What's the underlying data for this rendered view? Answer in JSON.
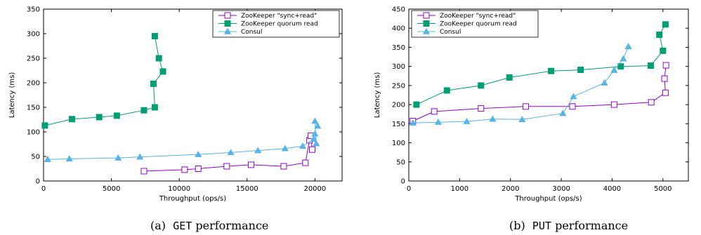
{
  "chart_data": [
    {
      "type": "line",
      "caption_prefix": "(a)",
      "caption_code": "GET",
      "caption_suffix": "performance",
      "xlabel": "Throughput (ops/s)",
      "ylabel": "Latency (ms)",
      "xlim": [
        0,
        22000
      ],
      "ylim": [
        0,
        350
      ],
      "xticks": [
        0,
        5000,
        10000,
        15000,
        20000
      ],
      "yticks": [
        0,
        50,
        100,
        150,
        200,
        250,
        300,
        350
      ],
      "grid": false,
      "legend_position": "top-right",
      "series": [
        {
          "name": "ZooKeeper \"sync+read\"",
          "color": "#9400d3",
          "marker": "open-square",
          "points": [
            [
              7400,
              20
            ],
            [
              10400,
              23
            ],
            [
              11400,
              25
            ],
            [
              13500,
              30
            ],
            [
              15300,
              33
            ],
            [
              17700,
              30
            ],
            [
              19300,
              37
            ],
            [
              19600,
              83
            ],
            [
              19700,
              92
            ],
            [
              19800,
              64
            ]
          ]
        },
        {
          "name": "ZooKeeper quorum read",
          "color": "#009e73",
          "marker": "filled-square",
          "points": [
            [
              100,
              113
            ],
            [
              2100,
              126
            ],
            [
              4100,
              130
            ],
            [
              5400,
              133
            ],
            [
              7400,
              144
            ],
            [
              8200,
              150
            ],
            [
              8100,
              198
            ],
            [
              8800,
              223
            ],
            [
              8500,
              250
            ],
            [
              8200,
              295
            ]
          ]
        },
        {
          "name": "Consul",
          "color": "#56b4e9",
          "marker": "filled-triangle",
          "points": [
            [
              300,
              44
            ],
            [
              1900,
              45
            ],
            [
              5500,
              47
            ],
            [
              7100,
              49
            ],
            [
              11400,
              54
            ],
            [
              13800,
              58
            ],
            [
              15800,
              62
            ],
            [
              17800,
              66
            ],
            [
              19100,
              71
            ],
            [
              19900,
              85
            ],
            [
              20000,
              96
            ],
            [
              20100,
              76
            ],
            [
              20000,
              122
            ],
            [
              20200,
              112
            ]
          ]
        }
      ]
    },
    {
      "type": "line",
      "caption_prefix": "(b)",
      "caption_code": "PUT",
      "caption_suffix": "performance",
      "xlabel": "Throughput (ops/s)",
      "ylabel": "Latency (ms)",
      "xlim": [
        0,
        5500
      ],
      "ylim": [
        0,
        450
      ],
      "xticks": [
        0,
        1000,
        2000,
        3000,
        4000,
        5000
      ],
      "yticks": [
        0,
        50,
        100,
        150,
        200,
        250,
        300,
        350,
        400,
        450
      ],
      "grid": false,
      "legend_position": "top-left",
      "series": [
        {
          "name": "ZooKeeper \"sync+read\"",
          "color": "#9400d3",
          "marker": "open-square",
          "points": [
            [
              80,
              157
            ],
            [
              500,
              182
            ],
            [
              1420,
              190
            ],
            [
              2300,
              195
            ],
            [
              3220,
              195
            ],
            [
              4040,
              200
            ],
            [
              4770,
              206
            ],
            [
              5050,
              231
            ],
            [
              5030,
              268
            ],
            [
              5060,
              303
            ]
          ]
        },
        {
          "name": "ZooKeeper quorum read",
          "color": "#009e73",
          "marker": "filled-square",
          "points": [
            [
              150,
              200
            ],
            [
              750,
              237
            ],
            [
              1420,
              250
            ],
            [
              1980,
              271
            ],
            [
              2800,
              288
            ],
            [
              3380,
              291
            ],
            [
              4170,
              300
            ],
            [
              4760,
              302
            ],
            [
              5000,
              341
            ],
            [
              4930,
              383
            ],
            [
              5050,
              410
            ]
          ]
        },
        {
          "name": "Consul",
          "color": "#56b4e9",
          "marker": "filled-triangle",
          "points": [
            [
              80,
              152
            ],
            [
              580,
              154
            ],
            [
              1140,
              156
            ],
            [
              1650,
              162
            ],
            [
              2230,
              161
            ],
            [
              3030,
              177
            ],
            [
              3240,
              221
            ],
            [
              3850,
              257
            ],
            [
              4040,
              290
            ],
            [
              4220,
              320
            ],
            [
              4320,
              352
            ]
          ]
        }
      ]
    }
  ]
}
